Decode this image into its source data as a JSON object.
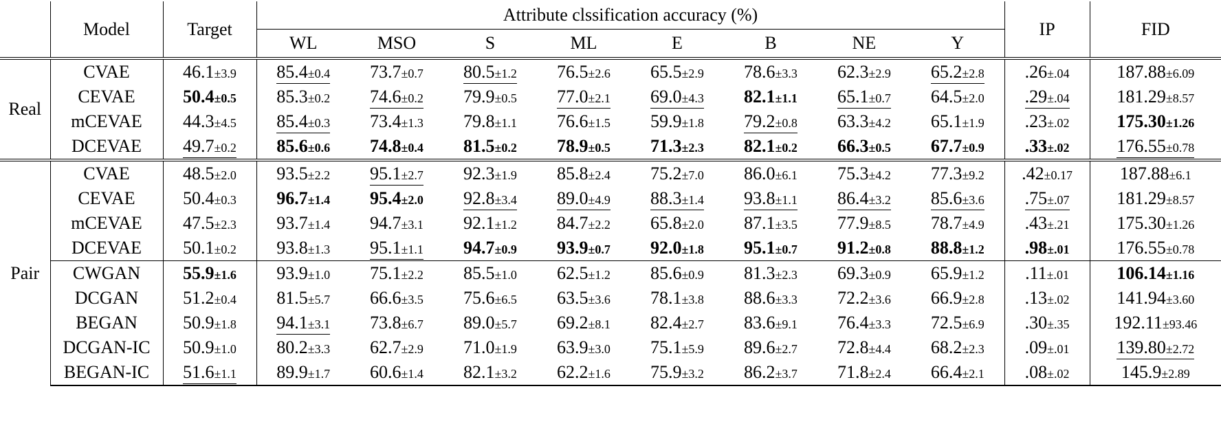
{
  "header": {
    "model": "Model",
    "target": "Target",
    "group": "Attribute clssification accuracy (%)",
    "attributes": [
      "WL",
      "MSO",
      "S",
      "ML",
      "E",
      "B",
      "NE",
      "Y"
    ],
    "ip": "IP",
    "fid": "FID"
  },
  "sections": [
    {
      "label": "Real",
      "blocks": [
        {
          "rows": [
            {
              "model": "CVAE",
              "cells": [
                {
                  "v": "46.1",
                  "s": "±3.9"
                },
                {
                  "v": "85.4",
                  "s": "±0.4",
                  "u": true
                },
                {
                  "v": "73.7",
                  "s": "±0.7"
                },
                {
                  "v": "80.5",
                  "s": "±1.2",
                  "u": true
                },
                {
                  "v": "76.5",
                  "s": "±2.6"
                },
                {
                  "v": "65.5",
                  "s": "±2.9"
                },
                {
                  "v": "78.6",
                  "s": "±3.3"
                },
                {
                  "v": "62.3",
                  "s": "±2.9"
                },
                {
                  "v": "65.2",
                  "s": "±2.8",
                  "u": true
                },
                {
                  "v": ".26",
                  "s": "±.04"
                },
                {
                  "v": "187.88",
                  "s": "±6.09"
                }
              ]
            },
            {
              "model": "CEVAE",
              "cells": [
                {
                  "v": "50.4",
                  "s": "±0.5",
                  "b": true
                },
                {
                  "v": "85.3",
                  "s": "±0.2"
                },
                {
                  "v": "74.6",
                  "s": "±0.2",
                  "u": true
                },
                {
                  "v": "79.9",
                  "s": "±0.5"
                },
                {
                  "v": "77.0",
                  "s": "±2.1",
                  "u": true
                },
                {
                  "v": "69.0",
                  "s": "±4.3",
                  "u": true
                },
                {
                  "v": "82.1",
                  "s": "±1.1",
                  "b": true
                },
                {
                  "v": "65.1",
                  "s": "±0.7",
                  "u": true
                },
                {
                  "v": "64.5",
                  "s": "±2.0"
                },
                {
                  "v": ".29",
                  "s": "±.04",
                  "u": true
                },
                {
                  "v": "181.29",
                  "s": "±8.57"
                }
              ]
            },
            {
              "model": "mCEVAE",
              "cells": [
                {
                  "v": "44.3",
                  "s": "±4.5"
                },
                {
                  "v": "85.4",
                  "s": "±0.3",
                  "u": true
                },
                {
                  "v": "73.4",
                  "s": "±1.3"
                },
                {
                  "v": "79.8",
                  "s": "±1.1"
                },
                {
                  "v": "76.6",
                  "s": "±1.5"
                },
                {
                  "v": "59.9",
                  "s": "±1.8"
                },
                {
                  "v": "79.2",
                  "s": "±0.8",
                  "u": true
                },
                {
                  "v": "63.3",
                  "s": "±4.2"
                },
                {
                  "v": "65.1",
                  "s": "±1.9"
                },
                {
                  "v": ".23",
                  "s": "±.02"
                },
                {
                  "v": "175.30",
                  "s": "±1.26",
                  "b": true
                }
              ]
            },
            {
              "model": "DCEVAE",
              "cells": [
                {
                  "v": "49.7",
                  "s": "±0.2",
                  "u": true
                },
                {
                  "v": "85.6",
                  "s": "±0.6",
                  "b": true
                },
                {
                  "v": "74.8",
                  "s": "±0.4",
                  "b": true
                },
                {
                  "v": "81.5",
                  "s": "±0.2",
                  "b": true
                },
                {
                  "v": "78.9",
                  "s": "±0.5",
                  "b": true
                },
                {
                  "v": "71.3",
                  "s": "±2.3",
                  "b": true
                },
                {
                  "v": "82.1",
                  "s": "±0.2",
                  "b": true
                },
                {
                  "v": "66.3",
                  "s": "±0.5",
                  "b": true
                },
                {
                  "v": "67.7",
                  "s": "±0.9",
                  "b": true
                },
                {
                  "v": ".33",
                  "s": "±.02",
                  "b": true
                },
                {
                  "v": "176.55",
                  "s": "±0.78",
                  "u": true
                }
              ]
            }
          ]
        }
      ]
    },
    {
      "label": "Pair",
      "blocks": [
        {
          "rows": [
            {
              "model": "CVAE",
              "cells": [
                {
                  "v": "48.5",
                  "s": "±2.0"
                },
                {
                  "v": "93.5",
                  "s": "±2.2"
                },
                {
                  "v": "95.1",
                  "s": "±2.7",
                  "u": true
                },
                {
                  "v": "92.3",
                  "s": "±1.9"
                },
                {
                  "v": "85.8",
                  "s": "±2.4"
                },
                {
                  "v": "75.2",
                  "s": "±7.0"
                },
                {
                  "v": "86.0",
                  "s": "±6.1"
                },
                {
                  "v": "75.3",
                  "s": "±4.2"
                },
                {
                  "v": "77.3",
                  "s": "±9.2"
                },
                {
                  "v": ".42",
                  "s": "±0.17"
                },
                {
                  "v": "187.88",
                  "s": "±6.1"
                }
              ]
            },
            {
              "model": "CEVAE",
              "cells": [
                {
                  "v": "50.4",
                  "s": "±0.3"
                },
                {
                  "v": "96.7",
                  "s": "±1.4",
                  "b": true
                },
                {
                  "v": "95.4",
                  "s": "±2.0",
                  "b": true
                },
                {
                  "v": "92.8",
                  "s": "±3.4",
                  "u": true
                },
                {
                  "v": "89.0",
                  "s": "±4.9",
                  "u": true
                },
                {
                  "v": "88.3",
                  "s": "±1.4",
                  "u": true
                },
                {
                  "v": "93.8",
                  "s": "±1.1",
                  "u": true
                },
                {
                  "v": "86.4",
                  "s": "±3.2",
                  "u": true
                },
                {
                  "v": "85.6",
                  "s": "±3.6",
                  "u": true
                },
                {
                  "v": ".75",
                  "s": "±.07",
                  "u": true
                },
                {
                  "v": "181.29",
                  "s": "±8.57"
                }
              ]
            },
            {
              "model": "mCEVAE",
              "cells": [
                {
                  "v": "47.5",
                  "s": "±2.3"
                },
                {
                  "v": "93.7",
                  "s": "±1.4"
                },
                {
                  "v": "94.7",
                  "s": "±3.1"
                },
                {
                  "v": "92.1",
                  "s": "±1.2"
                },
                {
                  "v": "84.7",
                  "s": "±2.2"
                },
                {
                  "v": "65.8",
                  "s": "±2.0"
                },
                {
                  "v": "87.1",
                  "s": "±3.5"
                },
                {
                  "v": "77.9",
                  "s": "±8.5"
                },
                {
                  "v": "78.7",
                  "s": "±4.9"
                },
                {
                  "v": ".43",
                  "s": "±.21"
                },
                {
                  "v": "175.30",
                  "s": "±1.26"
                }
              ]
            },
            {
              "model": "DCEVAE",
              "cells": [
                {
                  "v": "50.1",
                  "s": "±0.2"
                },
                {
                  "v": "93.8",
                  "s": "±1.3"
                },
                {
                  "v": "95.1",
                  "s": "±1.1",
                  "u": true
                },
                {
                  "v": "94.7",
                  "s": "±0.9",
                  "b": true
                },
                {
                  "v": "93.9",
                  "s": "±0.7",
                  "b": true
                },
                {
                  "v": "92.0",
                  "s": "±1.8",
                  "b": true
                },
                {
                  "v": "95.1",
                  "s": "±0.7",
                  "b": true
                },
                {
                  "v": "91.2",
                  "s": "±0.8",
                  "b": true
                },
                {
                  "v": "88.8",
                  "s": "±1.2",
                  "b": true
                },
                {
                  "v": ".98",
                  "s": "±.01",
                  "b": true
                },
                {
                  "v": "176.55",
                  "s": "±0.78"
                }
              ]
            }
          ]
        },
        {
          "rows": [
            {
              "model": "CWGAN",
              "cells": [
                {
                  "v": "55.9",
                  "s": "±1.6",
                  "b": true
                },
                {
                  "v": "93.9",
                  "s": "±1.0"
                },
                {
                  "v": "75.1",
                  "s": "±2.2"
                },
                {
                  "v": "85.5",
                  "s": "±1.0"
                },
                {
                  "v": "62.5",
                  "s": "±1.2"
                },
                {
                  "v": "85.6",
                  "s": "±0.9"
                },
                {
                  "v": "81.3",
                  "s": "±2.3"
                },
                {
                  "v": "69.3",
                  "s": "±0.9"
                },
                {
                  "v": "65.9",
                  "s": "±1.2"
                },
                {
                  "v": ".11",
                  "s": "±.01"
                },
                {
                  "v": "106.14",
                  "s": "±1.16",
                  "b": true
                }
              ]
            },
            {
              "model": "DCGAN",
              "cells": [
                {
                  "v": "51.2",
                  "s": "±0.4"
                },
                {
                  "v": "81.5",
                  "s": "±5.7"
                },
                {
                  "v": "66.6",
                  "s": "±3.5"
                },
                {
                  "v": "75.6",
                  "s": "±6.5"
                },
                {
                  "v": "63.5",
                  "s": "±3.6"
                },
                {
                  "v": "78.1",
                  "s": "±3.8"
                },
                {
                  "v": "88.6",
                  "s": "±3.3"
                },
                {
                  "v": "72.2",
                  "s": "±3.6"
                },
                {
                  "v": "66.9",
                  "s": "±2.8"
                },
                {
                  "v": ".13",
                  "s": "±.02"
                },
                {
                  "v": "141.94",
                  "s": "±3.60"
                }
              ]
            },
            {
              "model": "BEGAN",
              "cells": [
                {
                  "v": "50.9",
                  "s": "±1.8"
                },
                {
                  "v": "94.1",
                  "s": "±3.1",
                  "u": true
                },
                {
                  "v": "73.8",
                  "s": "±6.7"
                },
                {
                  "v": "89.0",
                  "s": "±5.7"
                },
                {
                  "v": "69.2",
                  "s": "±8.1"
                },
                {
                  "v": "82.4",
                  "s": "±2.7"
                },
                {
                  "v": "83.6",
                  "s": "±9.1"
                },
                {
                  "v": "76.4",
                  "s": "±3.3"
                },
                {
                  "v": "72.5",
                  "s": "±6.9"
                },
                {
                  "v": ".30",
                  "s": "±.35"
                },
                {
                  "v": "192.11",
                  "s": "±93.46"
                }
              ]
            },
            {
              "model": "DCGAN-IC",
              "cells": [
                {
                  "v": "50.9",
                  "s": "±1.0"
                },
                {
                  "v": "80.2",
                  "s": "±3.3"
                },
                {
                  "v": "62.7",
                  "s": "±2.9"
                },
                {
                  "v": "71.0",
                  "s": "±1.9"
                },
                {
                  "v": "63.9",
                  "s": "±3.0"
                },
                {
                  "v": "75.1",
                  "s": "±5.9"
                },
                {
                  "v": "89.6",
                  "s": "±2.7"
                },
                {
                  "v": "72.8",
                  "s": "±4.4"
                },
                {
                  "v": "68.2",
                  "s": "±2.3"
                },
                {
                  "v": ".09",
                  "s": "±.01"
                },
                {
                  "v": "139.80",
                  "s": "±2.72",
                  "u": true
                }
              ]
            },
            {
              "model": "BEGAN-IC",
              "cells": [
                {
                  "v": "51.6",
                  "s": "±1.1",
                  "u": true
                },
                {
                  "v": "89.9",
                  "s": "±1.7"
                },
                {
                  "v": "60.6",
                  "s": "±1.4"
                },
                {
                  "v": "82.1",
                  "s": "±3.2"
                },
                {
                  "v": "62.2",
                  "s": "±1.6"
                },
                {
                  "v": "75.9",
                  "s": "±3.2"
                },
                {
                  "v": "86.2",
                  "s": "±3.7"
                },
                {
                  "v": "71.8",
                  "s": "±2.4"
                },
                {
                  "v": "66.4",
                  "s": "±2.1"
                },
                {
                  "v": ".08",
                  "s": "±.02"
                },
                {
                  "v": "145.9",
                  "s": "±2.89"
                }
              ]
            }
          ]
        }
      ]
    }
  ]
}
